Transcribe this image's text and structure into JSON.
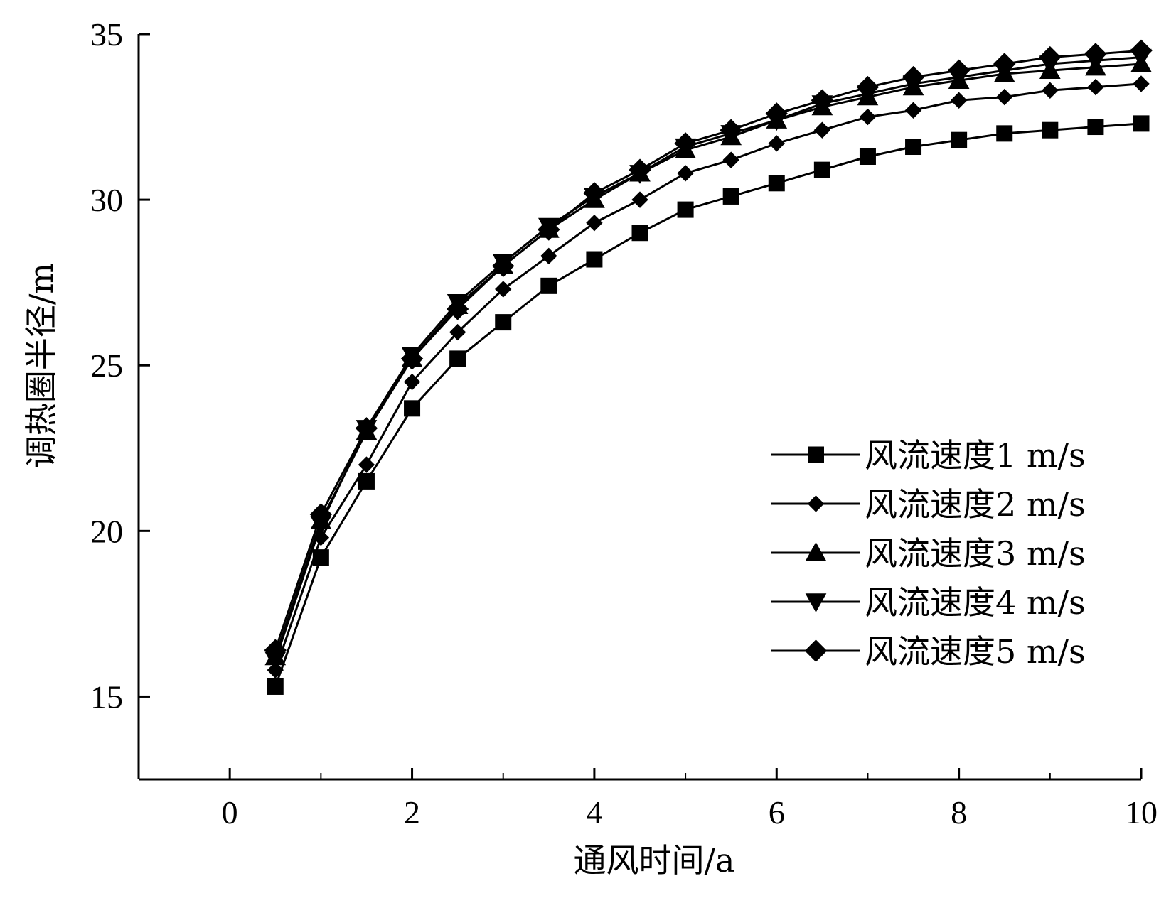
{
  "chart_data": {
    "type": "line",
    "title": "",
    "xlabel": "通风时间/a",
    "ylabel": "调热圈半径/m",
    "xlim": [
      -1,
      10
    ],
    "ylim": [
      12.5,
      35
    ],
    "x_ticks": [
      0,
      2,
      4,
      6,
      8,
      10
    ],
    "y_ticks": [
      15,
      20,
      25,
      30,
      35
    ],
    "grid": false,
    "legend_position": "right-middle",
    "x": [
      0.5,
      1,
      1.5,
      2,
      2.5,
      3,
      3.5,
      4,
      4.5,
      5,
      5.5,
      6,
      6.5,
      7,
      7.5,
      8,
      8.5,
      9,
      9.5,
      10
    ],
    "series": [
      {
        "name": "风流速度1 m/s",
        "marker": "square",
        "values": [
          15.3,
          19.2,
          21.5,
          23.7,
          25.2,
          26.3,
          27.4,
          28.2,
          29.0,
          29.7,
          30.1,
          30.5,
          30.9,
          31.3,
          31.6,
          31.8,
          32.0,
          32.1,
          32.2,
          32.3
        ]
      },
      {
        "name": "风流速度2 m/s",
        "marker": "small-diamond",
        "values": [
          15.8,
          19.8,
          22.0,
          24.5,
          26.0,
          27.3,
          28.3,
          29.3,
          30.0,
          30.8,
          31.2,
          31.7,
          32.1,
          32.5,
          32.7,
          33.0,
          33.1,
          33.3,
          33.4,
          33.5
        ]
      },
      {
        "name": "风流速度3 m/s",
        "marker": "triangle-up",
        "values": [
          16.2,
          20.3,
          23.0,
          25.2,
          26.8,
          28.0,
          29.1,
          30.0,
          30.8,
          31.5,
          31.9,
          32.4,
          32.8,
          33.1,
          33.4,
          33.6,
          33.8,
          33.9,
          34.0,
          34.1
        ]
      },
      {
        "name": "风流速度4 m/s",
        "marker": "triangle-down",
        "values": [
          16.1,
          20.2,
          23.1,
          25.3,
          26.9,
          28.1,
          29.2,
          30.1,
          30.8,
          31.6,
          32.0,
          32.4,
          32.9,
          33.2,
          33.5,
          33.7,
          33.9,
          34.1,
          34.2,
          34.3
        ]
      },
      {
        "name": "风流速度5 m/s",
        "marker": "diamond",
        "values": [
          16.4,
          20.5,
          23.1,
          25.2,
          26.7,
          28.0,
          29.1,
          30.2,
          30.9,
          31.7,
          32.1,
          32.6,
          33.0,
          33.4,
          33.7,
          33.9,
          34.1,
          34.3,
          34.4,
          34.5
        ]
      }
    ],
    "colors": {
      "line": "#000000",
      "background": "#ffffff"
    }
  }
}
